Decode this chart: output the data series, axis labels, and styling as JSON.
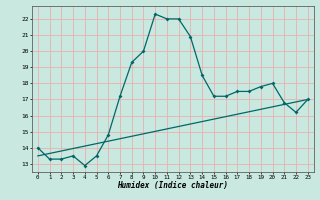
{
  "title": "",
  "xlabel": "Humidex (Indice chaleur)",
  "ylabel": "",
  "background_color": "#c8e8e0",
  "grid_color": "#e8b0b0",
  "line_color": "#006868",
  "xlim": [
    -0.5,
    23.5
  ],
  "ylim": [
    12.5,
    22.8
  ],
  "x_ticks": [
    0,
    1,
    2,
    3,
    4,
    5,
    6,
    7,
    8,
    9,
    10,
    11,
    12,
    13,
    14,
    15,
    16,
    17,
    18,
    19,
    20,
    21,
    22,
    23
  ],
  "y_ticks": [
    13,
    14,
    15,
    16,
    17,
    18,
    19,
    20,
    21,
    22
  ],
  "humidex_x": [
    0,
    1,
    2,
    3,
    4,
    5,
    6,
    7,
    8,
    9,
    10,
    11,
    12,
    13,
    14,
    15,
    16,
    17,
    18,
    19,
    20,
    21,
    22,
    23
  ],
  "humidex_y": [
    14.0,
    13.3,
    13.3,
    13.5,
    12.9,
    13.5,
    14.8,
    17.2,
    19.3,
    20.0,
    22.3,
    22.0,
    22.0,
    20.9,
    18.5,
    17.2,
    17.2,
    17.5,
    17.5,
    17.8,
    18.0,
    16.8,
    16.2,
    17.0
  ],
  "trend_x": [
    0,
    23
  ],
  "trend_y": [
    13.5,
    17.0
  ]
}
